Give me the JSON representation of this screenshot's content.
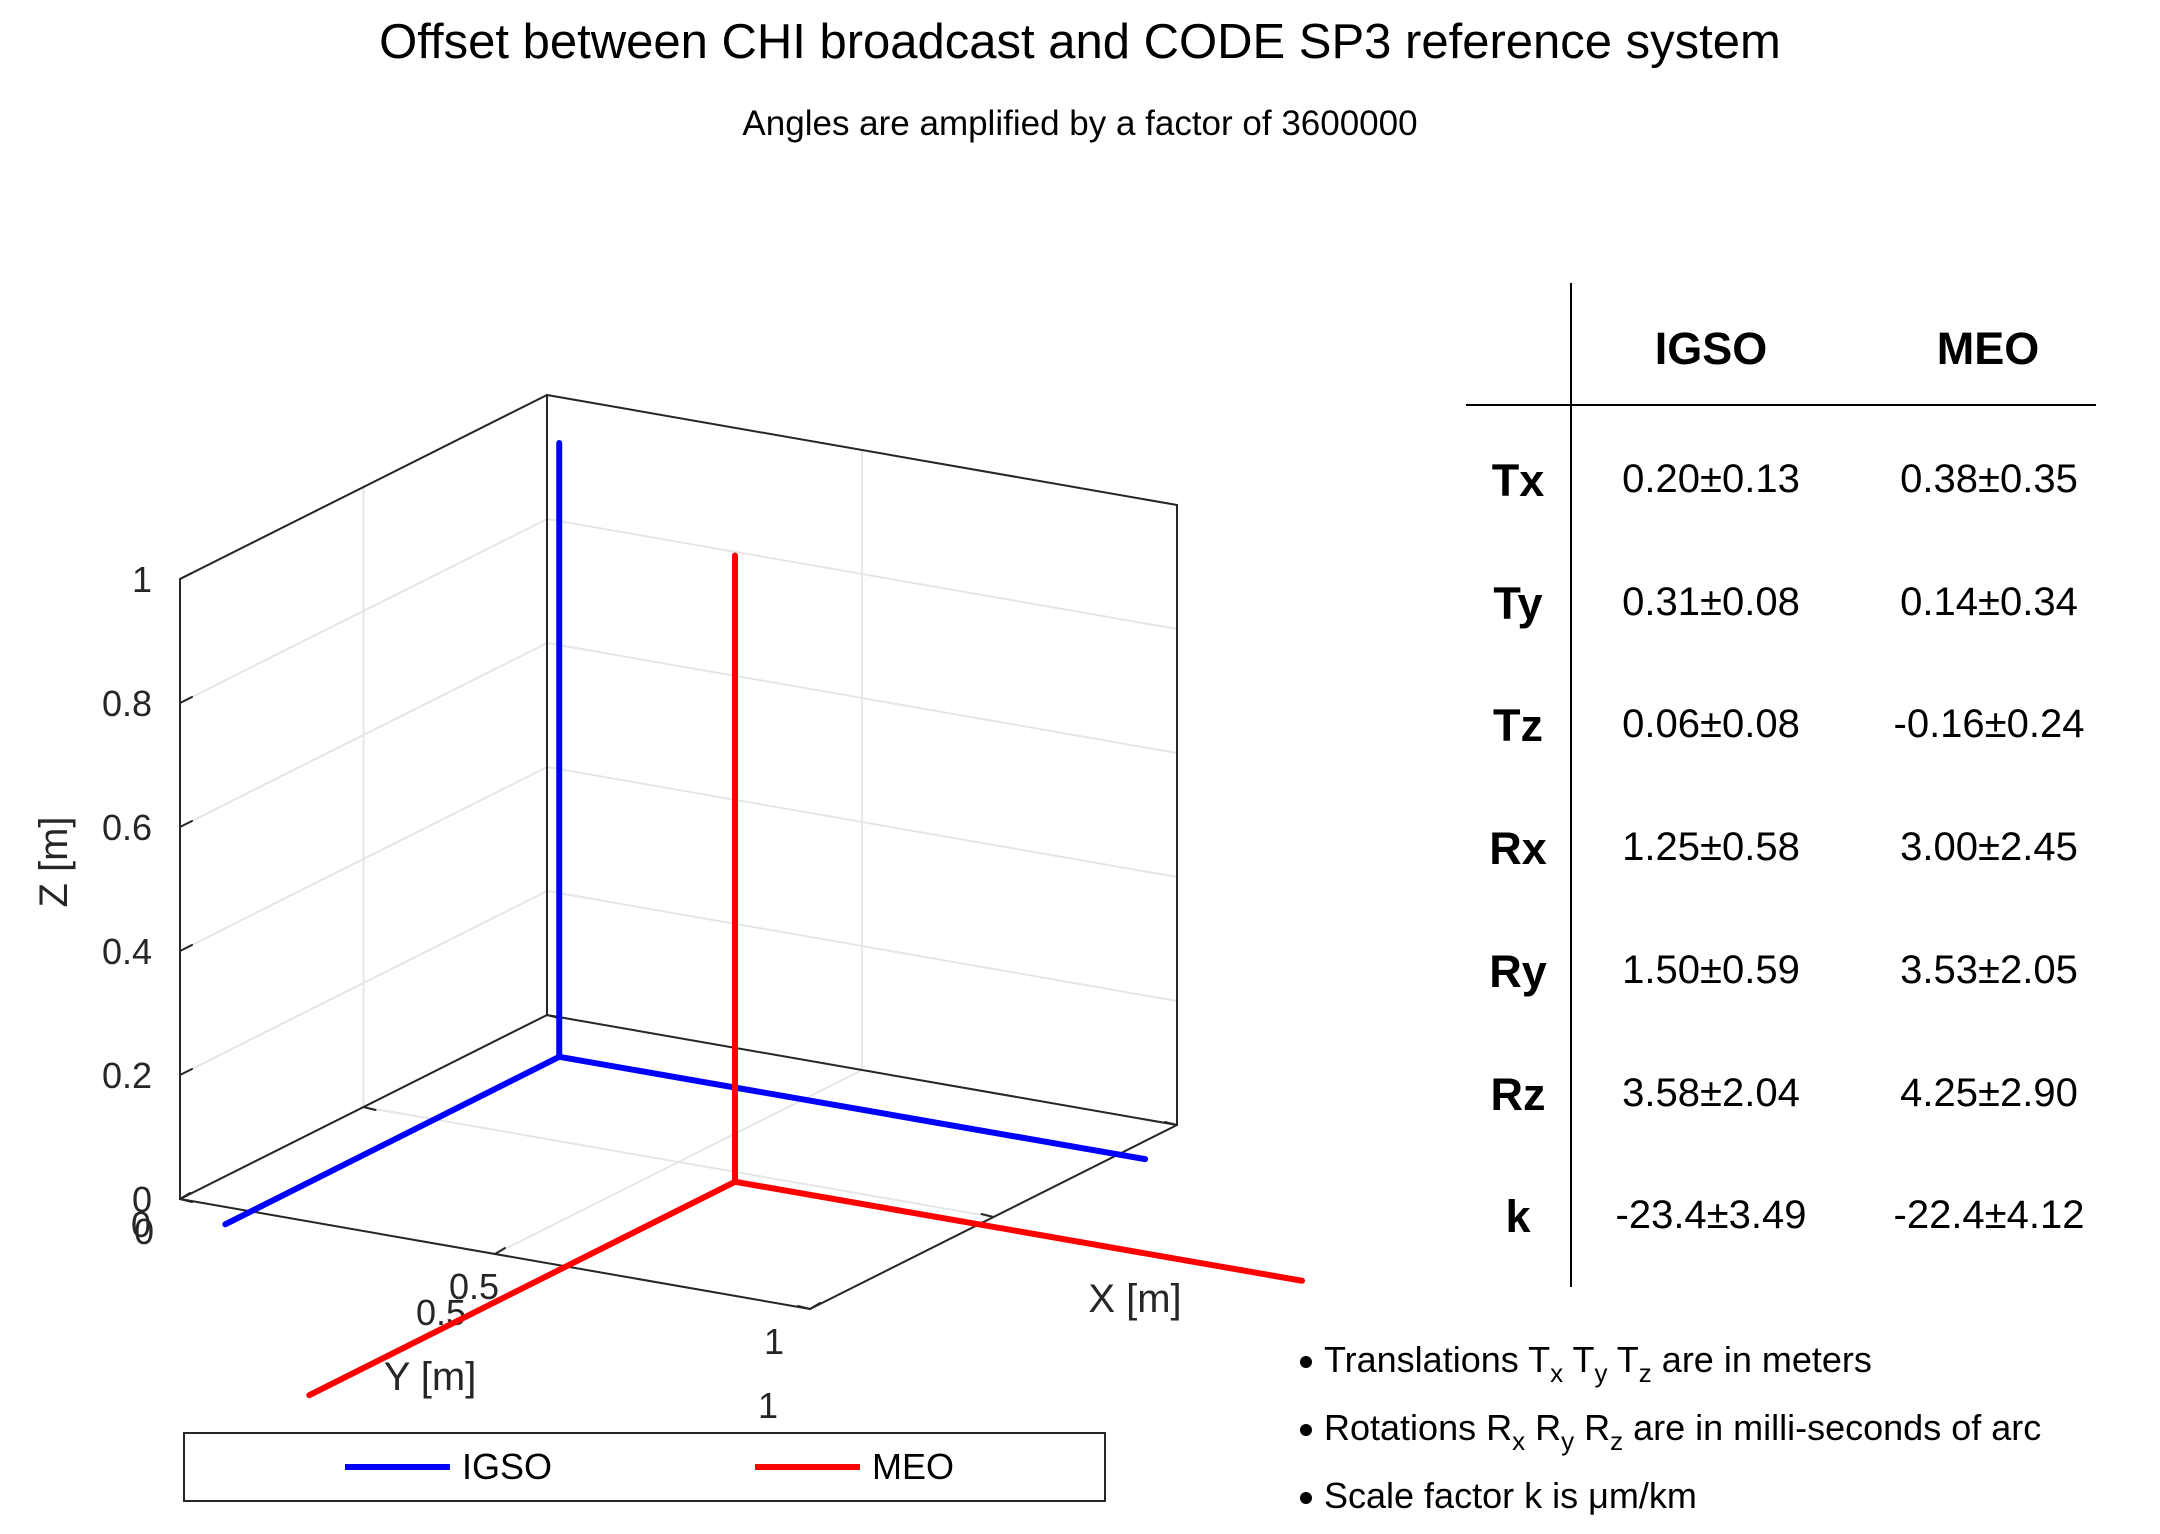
{
  "chart_data": {
    "type": "line3d",
    "title": "Offset between CHI broadcast and CODE SP3 reference system",
    "subtitle": "Angles are amplified by a factor of 3600000",
    "xlabel": "X [m]",
    "ylabel": "Y [m]",
    "zlabel": "Z [m]",
    "xlim": [
      0,
      1
    ],
    "ylim": [
      0,
      1
    ],
    "zlim": [
      0,
      1
    ],
    "x_ticks": [
      "0",
      "0.5",
      "1"
    ],
    "y_ticks": [
      "0",
      "0.5",
      "1"
    ],
    "z_ticks": [
      "0",
      "0.2",
      "0.4",
      "0.6",
      "0.8",
      "1"
    ],
    "grid": true,
    "legend_position": "bottom",
    "series": [
      {
        "name": "IGSO",
        "color": "#0000ff",
        "origin": [
          0.2,
          0.31,
          0.06
        ],
        "axes": [
          {
            "label": "X axis",
            "end": [
              1.13,
              0.31,
              0.06
            ]
          },
          {
            "label": "Y axis",
            "end": [
              0.2,
              1.22,
              0.06
            ]
          },
          {
            "label": "Z axis",
            "end": [
              0.2,
              0.31,
              1.05
            ]
          }
        ]
      },
      {
        "name": "MEO",
        "color": "#ff0000",
        "origin": [
          0.38,
          0.14,
          -0.16
        ],
        "axes": [
          {
            "label": "X axis",
            "end": [
              1.28,
              0.14,
              -0.16
            ]
          },
          {
            "label": "Y axis",
            "end": [
              0.38,
              1.3,
              -0.16
            ]
          },
          {
            "label": "Z axis",
            "end": [
              0.38,
              0.14,
              0.85
            ]
          }
        ]
      }
    ]
  },
  "table": {
    "columns": [
      "IGSO",
      "MEO"
    ],
    "rows": [
      {
        "label": "Tx",
        "igso": "0.20±0.13",
        "meo": "0.38±0.35"
      },
      {
        "label": "Ty",
        "igso": "0.31±0.08",
        "meo": "0.14±0.34"
      },
      {
        "label": "Tz",
        "igso": "0.06±0.08",
        "meo": "-0.16±0.24"
      },
      {
        "label": "Rx",
        "igso": "1.25±0.58",
        "meo": "3.00±2.45"
      },
      {
        "label": "Ry",
        "igso": "1.50±0.59",
        "meo": "3.53±2.05"
      },
      {
        "label": "Rz",
        "igso": "3.58±2.04",
        "meo": "4.25±2.90"
      },
      {
        "label": "k",
        "igso": "-23.4±3.49",
        "meo": "-22.4±4.12"
      }
    ]
  },
  "notes": {
    "translations": {
      "pre": "Translations ",
      "t1": "T",
      "s1": "x",
      "t2": " T",
      "s2": "y",
      "t3": " T",
      "s3": "z",
      "post": " are in meters"
    },
    "rotations": {
      "pre": "Rotations ",
      "t1": "R",
      "s1": "x",
      "t2": " R",
      "s2": "y",
      "t3": " R",
      "s3": "z",
      "post": " are in milli-seconds of arc"
    },
    "scale": {
      "text": "Scale factor k is μm/km"
    }
  },
  "legend": {
    "items": [
      "IGSO",
      "MEO"
    ]
  }
}
